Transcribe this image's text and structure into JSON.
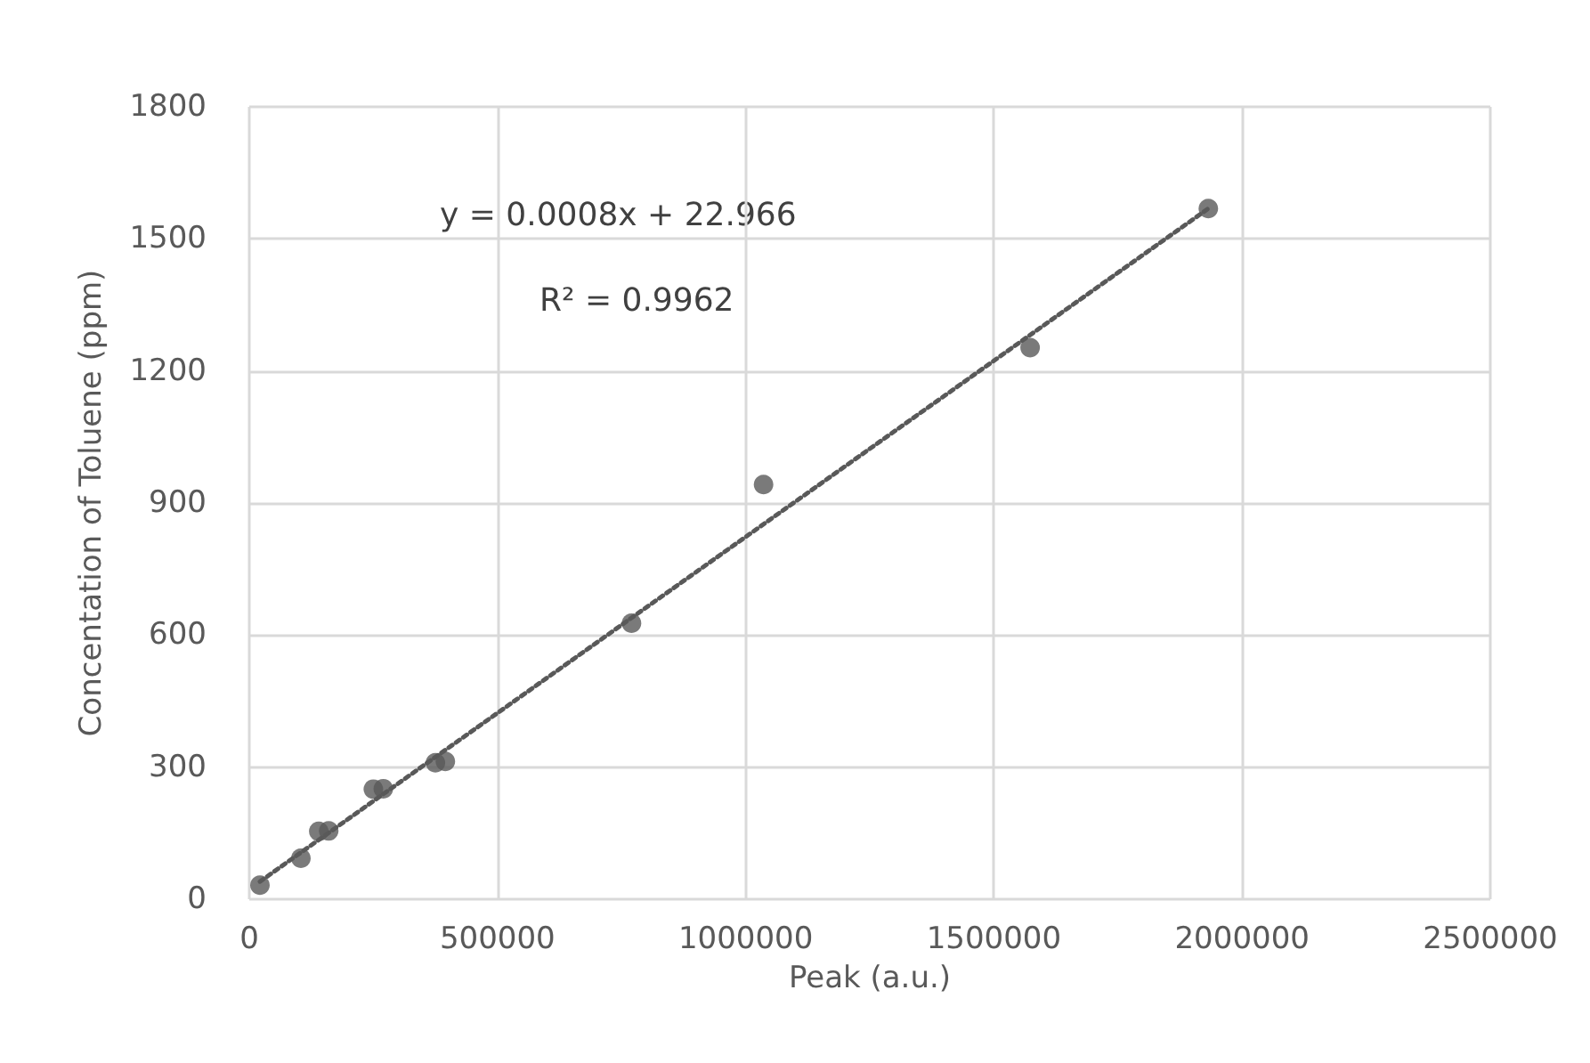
{
  "chart_data": {
    "type": "scatter",
    "xlabel": "Peak (a.u.)",
    "ylabel": "Concentation of Toluene (ppm)",
    "annotations": [
      "y = 0.0008x + 22.966",
      "R² = 0.9962"
    ],
    "xlim": [
      0,
      2500000
    ],
    "xticks": [
      0,
      500000,
      1000000,
      1500000,
      2000000,
      2500000
    ],
    "ylim": [
      0,
      1800
    ],
    "yticks": [
      0,
      300,
      600,
      900,
      1200,
      1500,
      1800
    ],
    "grid": true,
    "marker": "circle",
    "series": [
      {
        "color": "#595959",
        "x": [
          21500,
          104000,
          140000,
          160000,
          250000,
          270000,
          375000,
          395000,
          770000,
          1036000,
          1573000,
          1932000
        ],
        "values": [
          32,
          93,
          154,
          155,
          250,
          251,
          310,
          313,
          627,
          942,
          1253,
          1569
        ]
      },
      {
        "type": "line",
        "line_style": "dotted",
        "marker": "none",
        "color": "#595959",
        "x": [
          21500,
          1932000
        ],
        "values": [
          40,
          1569
        ]
      }
    ]
  }
}
